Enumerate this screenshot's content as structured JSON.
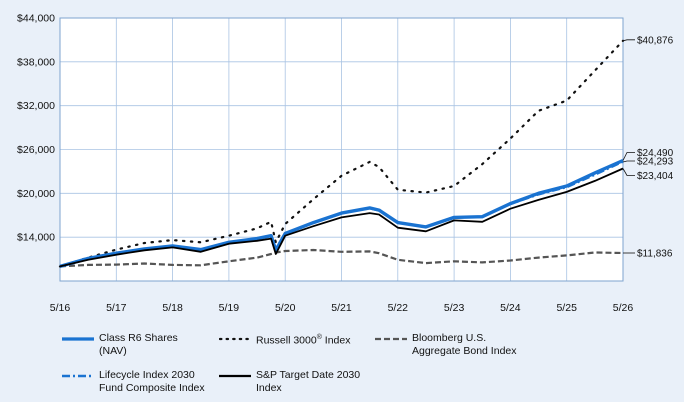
{
  "chart_data": {
    "type": "line",
    "title": "",
    "xlabel": "",
    "ylabel": "",
    "ylim": [
      8000,
      44000
    ],
    "y_ticks": [
      14000,
      20000,
      26000,
      32000,
      38000,
      44000
    ],
    "y_tick_labels": [
      "$14,000",
      "$20,000",
      "$26,000",
      "$32,000",
      "$38,000",
      "$44,000"
    ],
    "x_ticks": [
      "5/16",
      "5/17",
      "5/18",
      "5/19",
      "5/20",
      "5/21",
      "5/22",
      "5/23",
      "5/24",
      "5/25",
      "5/26"
    ],
    "grid": true,
    "legend_position": "bottom",
    "x_points": [
      "5/16",
      "11/16",
      "5/17",
      "11/17",
      "5/18",
      "11/18",
      "5/19",
      "11/19",
      "2/20",
      "3/20",
      "5/20",
      "11/20",
      "5/21",
      "11/21",
      "1/22",
      "5/22",
      "11/22",
      "5/23",
      "11/23",
      "5/24",
      "11/24",
      "5/25",
      "11/25",
      "5/26"
    ],
    "series": [
      {
        "name": "Class R6 Shares (NAV)",
        "color": "#1a73d1",
        "style": "thick-solid",
        "values": [
          10000,
          11100,
          11800,
          12400,
          12800,
          12300,
          13300,
          13800,
          14200,
          12200,
          14500,
          16000,
          17300,
          18000,
          17700,
          16000,
          15400,
          16700,
          16800,
          18600,
          20000,
          21000,
          22800,
          24490
        ]
      },
      {
        "name": "Russell 3000® Index",
        "color": "#111111",
        "style": "dotted",
        "values": [
          10000,
          11200,
          12300,
          13200,
          13600,
          13300,
          14200,
          15200,
          16100,
          13300,
          15800,
          19200,
          22400,
          24300,
          23600,
          20500,
          20100,
          21000,
          24000,
          27500,
          31300,
          32700,
          36800,
          40876
        ]
      },
      {
        "name": "Bloomberg U.S. Aggregate Bond Index",
        "color": "#555555",
        "style": "dashed",
        "values": [
          10000,
          10200,
          10250,
          10400,
          10200,
          10150,
          10700,
          11200,
          11700,
          11900,
          12100,
          12250,
          12000,
          12050,
          11800,
          10900,
          10450,
          10700,
          10550,
          10800,
          11200,
          11500,
          11900,
          11836
        ]
      },
      {
        "name": "Lifecycle Index 2030 Fund Composite Index",
        "color": "#1a73d1",
        "style": "dash-dot",
        "values": [
          10000,
          11000,
          11700,
          12300,
          12700,
          12200,
          13300,
          13800,
          14300,
          12500,
          14600,
          15900,
          17300,
          17900,
          17600,
          16000,
          15400,
          16700,
          16700,
          18500,
          19800,
          20800,
          22500,
          24293
        ]
      },
      {
        "name": "S&P Target Date 2030 Index",
        "color": "#000000",
        "style": "solid",
        "values": [
          10000,
          10900,
          11600,
          12200,
          12600,
          12000,
          13100,
          13500,
          13800,
          11700,
          14200,
          15500,
          16700,
          17300,
          17100,
          15300,
          14800,
          16300,
          16100,
          17900,
          19100,
          20200,
          21700,
          23404
        ]
      }
    ],
    "end_labels": [
      "$40,876",
      "$24,490",
      "$24,293",
      "$23,404",
      "$11,836"
    ]
  },
  "legend": {
    "items": [
      {
        "line1": "Class R6 Shares",
        "line2": "(NAV)",
        "icon": "thick-solid-blue"
      },
      {
        "line1": "Russell 3000",
        "sup": "®",
        "line1b": " Index",
        "line2": "",
        "icon": "dotted-black"
      },
      {
        "line1": "Bloomberg U.S.",
        "line2": "Aggregate Bond Index",
        "icon": "dashed-gray"
      },
      {
        "line1": "Lifecycle Index 2030",
        "line2": "Fund Composite Index",
        "icon": "dash-dot-blue"
      },
      {
        "line1": "S&P Target Date 2030",
        "line2": "Index",
        "icon": "solid-black"
      }
    ]
  }
}
